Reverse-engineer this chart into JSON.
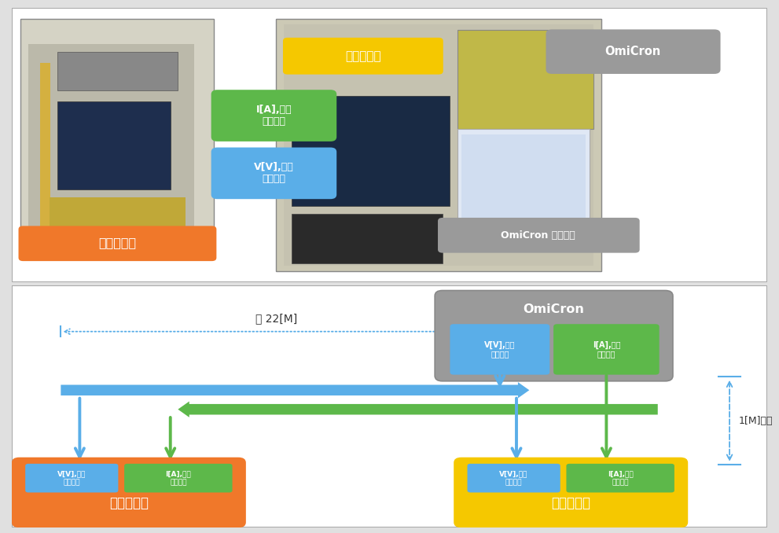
{
  "top": {
    "meter_label": "미터링장치",
    "power_label": "전력분석기",
    "omicron_label": "OmiCron",
    "screen_label": "OmiCron 제어화면",
    "green_arrow_label": "I[A],위상\n가변출력",
    "blue_arrow_label": "V[V],위상\n가변출력",
    "green": "#5db84a",
    "blue": "#5aaee8",
    "orange": "#f0782a",
    "yellow": "#f5c800",
    "gray": "#9a9a9a",
    "white": "#ffffff"
  },
  "bot": {
    "omicron_label": "OmiCron",
    "dist_label": "약 22[M]",
    "near_label": "1[M]미만",
    "v_out_label": "V[V],위상\n가변출력",
    "i_out_label": "I[A],위상\n가변출력",
    "v_in_label": "V[V],위상\n가변입력",
    "i_in_label": "I[A],위상\n가변입력",
    "meter_label": "미터링장치",
    "power_label": "전력분석기",
    "blue": "#5aaee8",
    "green": "#5db84a",
    "orange": "#f0782a",
    "yellow": "#f5c800",
    "gray": "#9a9a9a"
  }
}
